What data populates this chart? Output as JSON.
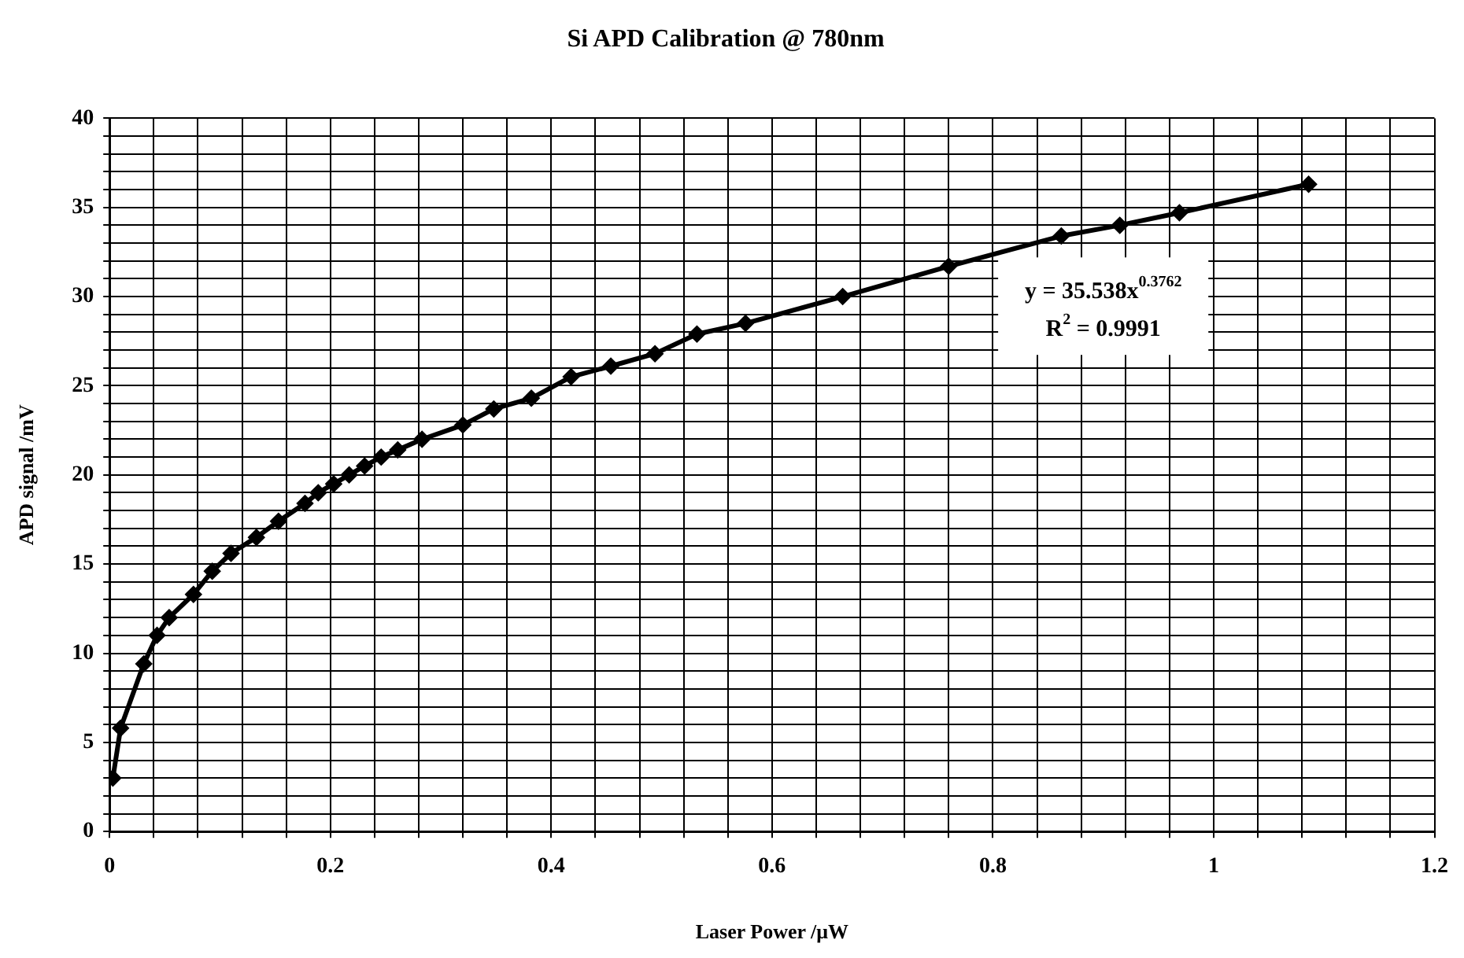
{
  "chart_data": {
    "type": "line",
    "title": "Si APD Calibration @ 780nm",
    "xlabel": "Laser Power /μW",
    "ylabel": "APD signal /mV",
    "annotations": [
      "y = 35.538x$^{0.3762}$",
      "R$^{2}$ = 0.9991"
    ],
    "x": [
      0.003,
      0.01,
      0.031,
      0.043,
      0.054,
      0.076,
      0.093,
      0.11,
      0.133,
      0.153,
      0.177,
      0.189,
      0.203,
      0.217,
      0.231,
      0.246,
      0.261,
      0.283,
      0.32,
      0.348,
      0.382,
      0.418,
      0.454,
      0.494,
      0.532,
      0.576,
      0.664,
      0.76,
      0.862,
      0.915,
      0.969,
      1.086
    ],
    "series": [
      {
        "color": "#000000",
        "values": [
          3.0,
          5.8,
          9.4,
          11.0,
          12.0,
          13.3,
          14.6,
          15.6,
          16.5,
          17.4,
          18.4,
          19.0,
          19.5,
          20.0,
          20.5,
          21.0,
          21.4,
          22.0,
          22.8,
          23.7,
          24.3,
          25.5,
          26.1,
          26.8,
          27.9,
          28.5,
          30.0,
          31.7,
          33.4,
          34.0,
          34.7,
          36.3
        ]
      }
    ],
    "marker": "diamond",
    "line_style": "solid",
    "grid": true,
    "legend": false,
    "xlim": [
      0,
      1.2
    ],
    "xticks": [
      0,
      {
        "value": 0.04,
        "label": null
      },
      {
        "value": 0.08,
        "label": null
      },
      {
        "value": 0.12,
        "label": null
      },
      {
        "value": 0.16,
        "label": null
      },
      0.2,
      {
        "value": 0.24,
        "label": null
      },
      {
        "value": 0.28,
        "label": null
      },
      {
        "value": 0.32,
        "label": null
      },
      {
        "value": 0.36,
        "label": null
      },
      0.4,
      {
        "value": 0.44,
        "label": null
      },
      {
        "value": 0.48,
        "label": null
      },
      {
        "value": 0.52,
        "label": null
      },
      {
        "value": 0.56,
        "label": null
      },
      0.6,
      {
        "value": 0.64,
        "label": null
      },
      {
        "value": 0.68,
        "label": null
      },
      {
        "value": 0.72,
        "label": null
      },
      {
        "value": 0.76,
        "label": null
      },
      0.8,
      {
        "value": 0.84,
        "label": null
      },
      {
        "value": 0.88,
        "label": null
      },
      {
        "value": 0.92,
        "label": null
      },
      {
        "value": 0.96,
        "label": null
      },
      1,
      {
        "value": 1.04,
        "label": null
      },
      {
        "value": 1.08,
        "label": null
      },
      {
        "value": 1.12,
        "label": null
      },
      {
        "value": 1.16,
        "label": null
      },
      1.2
    ],
    "ylim": [
      0,
      40
    ],
    "yticks": [
      0,
      {
        "value": 1,
        "label": null
      },
      {
        "value": 2,
        "label": null
      },
      {
        "value": 3,
        "label": null
      },
      {
        "value": 4,
        "label": null
      },
      5,
      {
        "value": 6,
        "label": null
      },
      {
        "value": 7,
        "label": null
      },
      {
        "value": 8,
        "label": null
      },
      {
        "value": 9,
        "label": null
      },
      10,
      {
        "value": 11,
        "label": null
      },
      {
        "value": 12,
        "label": null
      },
      {
        "value": 13,
        "label": null
      },
      {
        "value": 14,
        "label": null
      },
      15,
      {
        "value": 16,
        "label": null
      },
      {
        "value": 17,
        "label": null
      },
      {
        "value": 18,
        "label": null
      },
      {
        "value": 19,
        "label": null
      },
      20,
      {
        "value": 21,
        "label": null
      },
      {
        "value": 22,
        "label": null
      },
      {
        "value": 23,
        "label": null
      },
      {
        "value": 24,
        "label": null
      },
      25,
      {
        "value": 26,
        "label": null
      },
      {
        "value": 27,
        "label": null
      },
      {
        "value": 28,
        "label": null
      },
      {
        "value": 29,
        "label": null
      },
      30,
      {
        "value": 31,
        "label": null
      },
      {
        "value": 32,
        "label": null
      },
      {
        "value": 33,
        "label": null
      },
      {
        "value": 34,
        "label": null
      },
      35,
      {
        "value": 36,
        "label": null
      },
      {
        "value": 37,
        "label": null
      },
      {
        "value": 38,
        "label": null
      },
      {
        "value": 39,
        "label": null
      },
      40
    ]
  }
}
